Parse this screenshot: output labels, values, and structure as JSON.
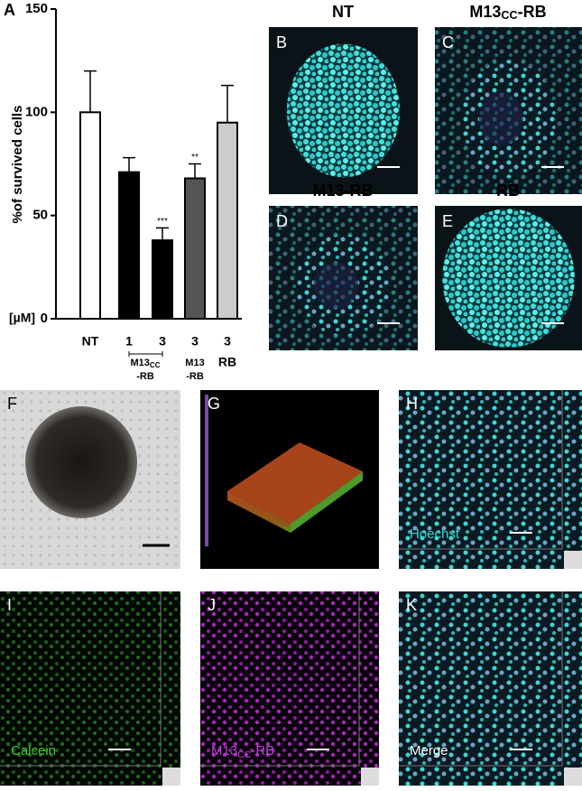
{
  "chart_data": {
    "type": "bar",
    "panel": "A",
    "ylabel": "%of survived cells",
    "unit_label": "[µM]",
    "categories": [
      "NT",
      "1",
      "3",
      "3",
      "3"
    ],
    "values": [
      100,
      71,
      38,
      68,
      95
    ],
    "errors": [
      20,
      7,
      6,
      7,
      18
    ],
    "colors": [
      "#ffffff",
      "#000000",
      "#000000",
      "#555555",
      "#cccccc"
    ],
    "significance": [
      null,
      null,
      "***",
      "**",
      null
    ],
    "ylim": [
      0,
      150
    ],
    "yticks": [
      0,
      50,
      100,
      150
    ],
    "groups": [
      {
        "main": "M13",
        "sub": "CC",
        "tail": "-RB"
      },
      {
        "main": "M13",
        "tail": "-RB"
      },
      {
        "main": "RB"
      }
    ]
  },
  "panels": [
    {
      "letter": "B",
      "title": {
        "main": "NT"
      }
    },
    {
      "letter": "C",
      "title": {
        "main": "M13",
        "sub": "CC",
        "tail": "-RB"
      }
    },
    {
      "letter": "D",
      "title": {
        "main": "M13-RB"
      }
    },
    {
      "letter": "E",
      "title": {
        "main": "RB"
      }
    },
    {
      "letter": "F"
    },
    {
      "letter": "G"
    },
    {
      "letter": "H",
      "stain": {
        "main": "Hoechst"
      }
    },
    {
      "letter": "I",
      "stain": {
        "main": "Calcein"
      }
    },
    {
      "letter": "J",
      "stain": {
        "main": "M13",
        "sub": "CC",
        "tail": "-RB"
      }
    },
    {
      "letter": "K",
      "stain": {
        "main": "Merge"
      }
    }
  ]
}
